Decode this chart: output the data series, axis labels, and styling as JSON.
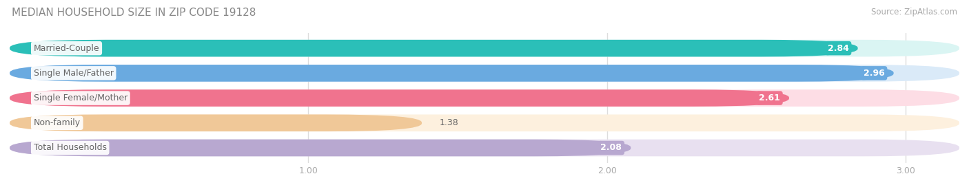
{
  "title": "MEDIAN HOUSEHOLD SIZE IN ZIP CODE 19128",
  "source": "Source: ZipAtlas.com",
  "categories": [
    "Married-Couple",
    "Single Male/Father",
    "Single Female/Mother",
    "Non-family",
    "Total Households"
  ],
  "values": [
    2.84,
    2.96,
    2.61,
    1.38,
    2.08
  ],
  "bar_colors": [
    "#2bbfb8",
    "#6aaae0",
    "#f0738e",
    "#f0c898",
    "#b8a8d0"
  ],
  "bar_bg_colors": [
    "#daf5f3",
    "#daeaf8",
    "#fddde5",
    "#fdf0de",
    "#e8e0f0"
  ],
  "xlim_min": 0.0,
  "xlim_max": 3.18,
  "xstart": 0.0,
  "xticks": [
    1.0,
    2.0,
    3.0
  ],
  "title_color": "#888888",
  "source_color": "#aaaaaa",
  "label_text_color": "#666666",
  "value_text_color": "#ffffff",
  "background_color": "#ffffff",
  "tick_color": "#aaaaaa",
  "grid_color": "#dddddd"
}
